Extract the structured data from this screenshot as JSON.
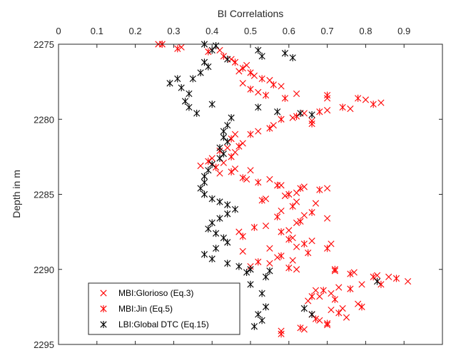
{
  "chart_data": {
    "type": "scatter",
    "title": "",
    "xlabel": "BI Correlations",
    "ylabel": "Depth in m",
    "xlim": [
      0,
      1
    ],
    "ylim": [
      2275,
      2295
    ],
    "y_reversed": true,
    "x_axis_position": "top",
    "xticks": [
      "0",
      "0.1",
      "0.2",
      "0.3",
      "0.4",
      "0.5",
      "0.6",
      "0.7",
      "0.8",
      "0.9"
    ],
    "yticks": [
      "2275",
      "2280",
      "2285",
      "2290",
      "2295"
    ],
    "grid": false,
    "legend_position": "bottom-left",
    "series": [
      {
        "name": "MBI:Glorioso (Eq.3)",
        "marker": "x",
        "color": "#ff0000",
        "points": [
          [
            0.26,
            2275.0
          ],
          [
            0.32,
            2275.2
          ],
          [
            0.42,
            2275.4
          ],
          [
            0.45,
            2276.0
          ],
          [
            0.49,
            2276.4
          ],
          [
            0.47,
            2276.8
          ],
          [
            0.51,
            2277.1
          ],
          [
            0.48,
            2277.6
          ],
          [
            0.55,
            2277.4
          ],
          [
            0.58,
            2277.8
          ],
          [
            0.52,
            2278.2
          ],
          [
            0.62,
            2278.3
          ],
          [
            0.7,
            2278.6
          ],
          [
            0.8,
            2278.7
          ],
          [
            0.84,
            2278.9
          ],
          [
            0.76,
            2279.3
          ],
          [
            0.7,
            2279.4
          ],
          [
            0.64,
            2279.6
          ],
          [
            0.61,
            2279.9
          ],
          [
            0.66,
            2280.1
          ],
          [
            0.56,
            2280.4
          ],
          [
            0.52,
            2280.8
          ],
          [
            0.46,
            2281.0
          ],
          [
            0.48,
            2281.6
          ],
          [
            0.44,
            2281.9
          ],
          [
            0.46,
            2282.2
          ],
          [
            0.4,
            2282.6
          ],
          [
            0.43,
            2282.9
          ],
          [
            0.37,
            2283.1
          ],
          [
            0.46,
            2283.3
          ],
          [
            0.5,
            2283.4
          ],
          [
            0.42,
            2283.6
          ],
          [
            0.49,
            2284.0
          ],
          [
            0.55,
            2284.0
          ],
          [
            0.58,
            2284.4
          ],
          [
            0.64,
            2284.5
          ],
          [
            0.7,
            2284.6
          ],
          [
            0.62,
            2284.9
          ],
          [
            0.59,
            2285.1
          ],
          [
            0.54,
            2285.3
          ],
          [
            0.62,
            2285.5
          ],
          [
            0.67,
            2285.6
          ],
          [
            0.58,
            2286.1
          ],
          [
            0.64,
            2286.4
          ],
          [
            0.7,
            2286.6
          ],
          [
            0.62,
            2286.9
          ],
          [
            0.54,
            2287.1
          ],
          [
            0.6,
            2287.4
          ],
          [
            0.47,
            2287.5
          ],
          [
            0.61,
            2287.9
          ],
          [
            0.66,
            2288.1
          ],
          [
            0.71,
            2288.3
          ],
          [
            0.62,
            2288.5
          ],
          [
            0.55,
            2288.6
          ],
          [
            0.48,
            2288.8
          ],
          [
            0.57,
            2289.2
          ],
          [
            0.61,
            2289.4
          ],
          [
            0.55,
            2289.6
          ],
          [
            0.5,
            2289.8
          ],
          [
            0.62,
            2290.0
          ],
          [
            0.72,
            2290.1
          ],
          [
            0.77,
            2290.2
          ],
          [
            0.83,
            2290.4
          ],
          [
            0.86,
            2290.5
          ],
          [
            0.91,
            2290.8
          ],
          [
            0.79,
            2291.0
          ],
          [
            0.73,
            2291.2
          ],
          [
            0.67,
            2291.4
          ],
          [
            0.71,
            2291.6
          ],
          [
            0.68,
            2291.8
          ],
          [
            0.65,
            2292.1
          ],
          [
            0.78,
            2292.3
          ],
          [
            0.74,
            2292.6
          ],
          [
            0.71,
            2292.7
          ],
          [
            0.66,
            2293.0
          ],
          [
            0.75,
            2293.2
          ],
          [
            0.68,
            2293.4
          ],
          [
            0.7,
            2293.7
          ],
          [
            0.64,
            2294.0
          ],
          [
            0.58,
            2294.1
          ]
        ]
      },
      {
        "name": "MBI:Jin (Eq.5)",
        "marker": "*",
        "color": "#ff0000",
        "points": [
          [
            0.27,
            2275.0
          ],
          [
            0.31,
            2275.3
          ],
          [
            0.39,
            2275.5
          ],
          [
            0.43,
            2275.8
          ],
          [
            0.46,
            2276.2
          ],
          [
            0.48,
            2276.6
          ],
          [
            0.5,
            2276.9
          ],
          [
            0.53,
            2277.3
          ],
          [
            0.56,
            2277.7
          ],
          [
            0.5,
            2278.0
          ],
          [
            0.54,
            2278.4
          ],
          [
            0.59,
            2278.6
          ],
          [
            0.7,
            2278.4
          ],
          [
            0.78,
            2278.6
          ],
          [
            0.82,
            2279.0
          ],
          [
            0.74,
            2279.2
          ],
          [
            0.68,
            2279.5
          ],
          [
            0.62,
            2279.8
          ],
          [
            0.58,
            2280.0
          ],
          [
            0.66,
            2280.3
          ],
          [
            0.55,
            2280.6
          ],
          [
            0.5,
            2281.0
          ],
          [
            0.45,
            2281.3
          ],
          [
            0.47,
            2281.8
          ],
          [
            0.42,
            2282.1
          ],
          [
            0.45,
            2282.5
          ],
          [
            0.39,
            2282.8
          ],
          [
            0.41,
            2283.2
          ],
          [
            0.45,
            2283.5
          ],
          [
            0.48,
            2283.9
          ],
          [
            0.52,
            2284.2
          ],
          [
            0.57,
            2284.4
          ],
          [
            0.63,
            2284.6
          ],
          [
            0.68,
            2284.7
          ],
          [
            0.6,
            2285.0
          ],
          [
            0.53,
            2285.4
          ],
          [
            0.61,
            2285.8
          ],
          [
            0.66,
            2286.2
          ],
          [
            0.57,
            2286.5
          ],
          [
            0.63,
            2286.8
          ],
          [
            0.51,
            2287.2
          ],
          [
            0.58,
            2287.5
          ],
          [
            0.48,
            2287.8
          ],
          [
            0.6,
            2288.0
          ],
          [
            0.64,
            2288.3
          ],
          [
            0.7,
            2288.6
          ],
          [
            0.65,
            2288.9
          ],
          [
            0.58,
            2289.1
          ],
          [
            0.52,
            2289.5
          ],
          [
            0.6,
            2289.9
          ],
          [
            0.72,
            2290.0
          ],
          [
            0.76,
            2290.3
          ],
          [
            0.82,
            2290.5
          ],
          [
            0.88,
            2290.6
          ],
          [
            0.84,
            2291.0
          ],
          [
            0.76,
            2291.3
          ],
          [
            0.69,
            2291.4
          ],
          [
            0.66,
            2291.8
          ],
          [
            0.72,
            2292.0
          ],
          [
            0.79,
            2292.5
          ],
          [
            0.73,
            2292.9
          ],
          [
            0.67,
            2293.3
          ],
          [
            0.7,
            2293.6
          ],
          [
            0.63,
            2293.9
          ],
          [
            0.58,
            2294.3
          ]
        ]
      },
      {
        "name": "LBI:Global DTC (Eq.15)",
        "marker": "*",
        "color": "#000000",
        "points": [
          [
            0.38,
            2275.0
          ],
          [
            0.41,
            2275.1
          ],
          [
            0.4,
            2275.4
          ],
          [
            0.52,
            2275.4
          ],
          [
            0.53,
            2275.8
          ],
          [
            0.59,
            2275.6
          ],
          [
            0.61,
            2275.9
          ],
          [
            0.44,
            2276.0
          ],
          [
            0.38,
            2276.2
          ],
          [
            0.39,
            2276.5
          ],
          [
            0.37,
            2276.9
          ],
          [
            0.35,
            2277.3
          ],
          [
            0.31,
            2277.3
          ],
          [
            0.29,
            2277.6
          ],
          [
            0.32,
            2277.9
          ],
          [
            0.34,
            2278.3
          ],
          [
            0.33,
            2278.8
          ],
          [
            0.34,
            2279.2
          ],
          [
            0.36,
            2279.6
          ],
          [
            0.4,
            2279.0
          ],
          [
            0.52,
            2279.2
          ],
          [
            0.57,
            2279.5
          ],
          [
            0.63,
            2279.6
          ],
          [
            0.66,
            2279.7
          ],
          [
            0.45,
            2279.9
          ],
          [
            0.44,
            2280.4
          ],
          [
            0.43,
            2280.8
          ],
          [
            0.43,
            2281.2
          ],
          [
            0.44,
            2281.5
          ],
          [
            0.42,
            2281.9
          ],
          [
            0.43,
            2282.3
          ],
          [
            0.42,
            2282.6
          ],
          [
            0.4,
            2283.0
          ],
          [
            0.39,
            2283.4
          ],
          [
            0.38,
            2283.8
          ],
          [
            0.38,
            2284.2
          ],
          [
            0.37,
            2284.6
          ],
          [
            0.38,
            2285.0
          ],
          [
            0.4,
            2285.3
          ],
          [
            0.42,
            2285.5
          ],
          [
            0.44,
            2285.7
          ],
          [
            0.46,
            2286.0
          ],
          [
            0.44,
            2286.3
          ],
          [
            0.42,
            2286.6
          ],
          [
            0.4,
            2286.9
          ],
          [
            0.39,
            2287.3
          ],
          [
            0.41,
            2287.6
          ],
          [
            0.43,
            2287.9
          ],
          [
            0.44,
            2288.2
          ],
          [
            0.41,
            2288.6
          ],
          [
            0.38,
            2289.0
          ],
          [
            0.4,
            2289.3
          ],
          [
            0.44,
            2289.6
          ],
          [
            0.47,
            2289.8
          ],
          [
            0.5,
            2290.0
          ],
          [
            0.55,
            2290.1
          ],
          [
            0.49,
            2290.2
          ],
          [
            0.54,
            2290.5
          ],
          [
            0.83,
            2290.8
          ],
          [
            0.5,
            2291.0
          ],
          [
            0.53,
            2291.6
          ],
          [
            0.46,
            2292.0
          ],
          [
            0.54,
            2292.5
          ],
          [
            0.52,
            2293.0
          ],
          [
            0.64,
            2292.6
          ],
          [
            0.66,
            2293.0
          ],
          [
            0.53,
            2293.4
          ],
          [
            0.51,
            2293.8
          ]
        ]
      }
    ]
  }
}
